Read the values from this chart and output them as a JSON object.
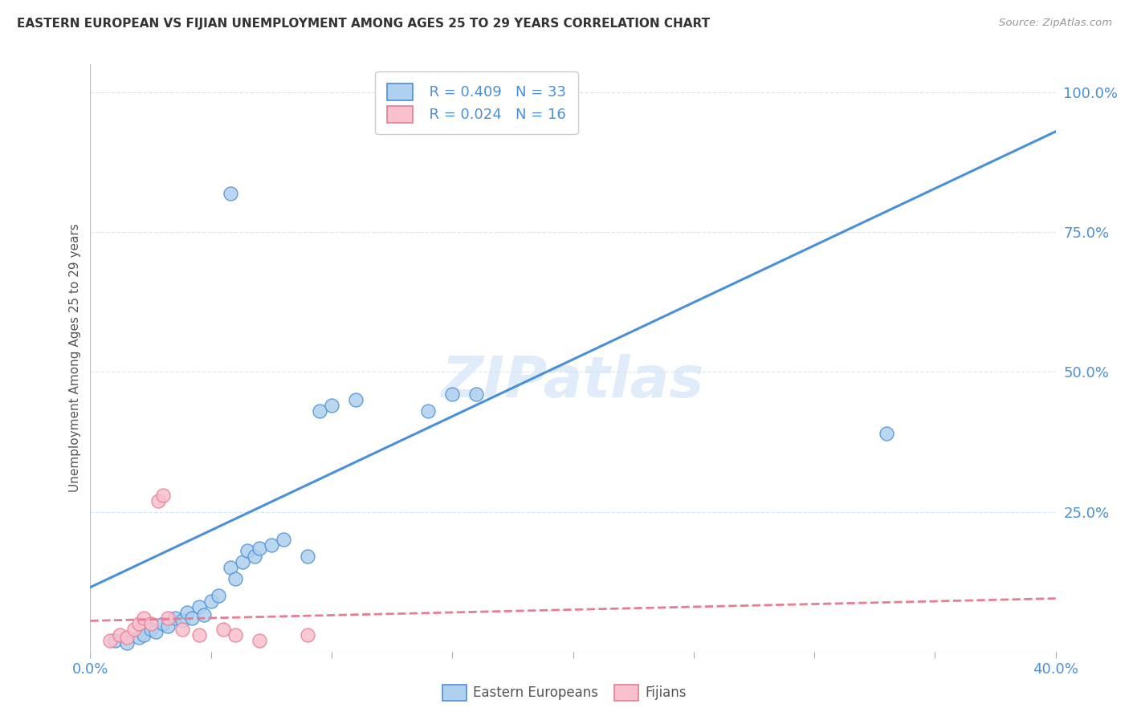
{
  "title": "EASTERN EUROPEAN VS FIJIAN UNEMPLOYMENT AMONG AGES 25 TO 29 YEARS CORRELATION CHART",
  "source": "Source: ZipAtlas.com",
  "ylabel": "Unemployment Among Ages 25 to 29 years",
  "xlim": [
    0.0,
    0.4
  ],
  "ylim": [
    0.0,
    1.05
  ],
  "xticks": [
    0.0,
    0.05,
    0.1,
    0.15,
    0.2,
    0.25,
    0.3,
    0.35,
    0.4
  ],
  "yticks_right": [
    0.0,
    0.25,
    0.5,
    0.75,
    1.0
  ],
  "yticklabels_right": [
    "",
    "25.0%",
    "50.0%",
    "75.0%",
    "100.0%"
  ],
  "watermark": "ZIPatlas",
  "legend_R_eastern": "R = 0.409",
  "legend_N_eastern": "N = 33",
  "legend_R_fijian": "R = 0.024",
  "legend_N_fijian": "N = 16",
  "eastern_color": "#afd0ee",
  "fijian_color": "#f9c0ce",
  "line_eastern_color": "#4a90d9",
  "line_fijian_color": "#e87c93",
  "eastern_scatter_x": [
    0.01,
    0.015,
    0.02,
    0.022,
    0.025,
    0.027,
    0.03,
    0.032,
    0.035,
    0.038,
    0.04,
    0.042,
    0.045,
    0.047,
    0.05,
    0.053,
    0.058,
    0.06,
    0.063,
    0.065,
    0.068,
    0.07,
    0.075,
    0.08,
    0.09,
    0.095,
    0.1,
    0.11,
    0.14,
    0.15,
    0.16,
    0.33,
    0.058
  ],
  "eastern_scatter_y": [
    0.02,
    0.015,
    0.025,
    0.03,
    0.04,
    0.035,
    0.05,
    0.045,
    0.06,
    0.055,
    0.07,
    0.06,
    0.08,
    0.065,
    0.09,
    0.1,
    0.15,
    0.13,
    0.16,
    0.18,
    0.17,
    0.185,
    0.19,
    0.2,
    0.17,
    0.43,
    0.44,
    0.45,
    0.43,
    0.46,
    0.46,
    0.39,
    0.82
  ],
  "fijian_scatter_x": [
    0.008,
    0.012,
    0.015,
    0.018,
    0.02,
    0.022,
    0.025,
    0.028,
    0.03,
    0.032,
    0.038,
    0.045,
    0.055,
    0.06,
    0.07,
    0.09
  ],
  "fijian_scatter_y": [
    0.02,
    0.03,
    0.025,
    0.04,
    0.05,
    0.06,
    0.05,
    0.27,
    0.28,
    0.06,
    0.04,
    0.03,
    0.04,
    0.03,
    0.02,
    0.03
  ],
  "eastern_line_x": [
    0.0,
    0.4
  ],
  "eastern_line_y": [
    0.115,
    0.93
  ],
  "fijian_line_x": [
    0.0,
    0.4
  ],
  "fijian_line_y": [
    0.055,
    0.095
  ],
  "background_color": "#ffffff",
  "grid_color": "#d8e8f5"
}
